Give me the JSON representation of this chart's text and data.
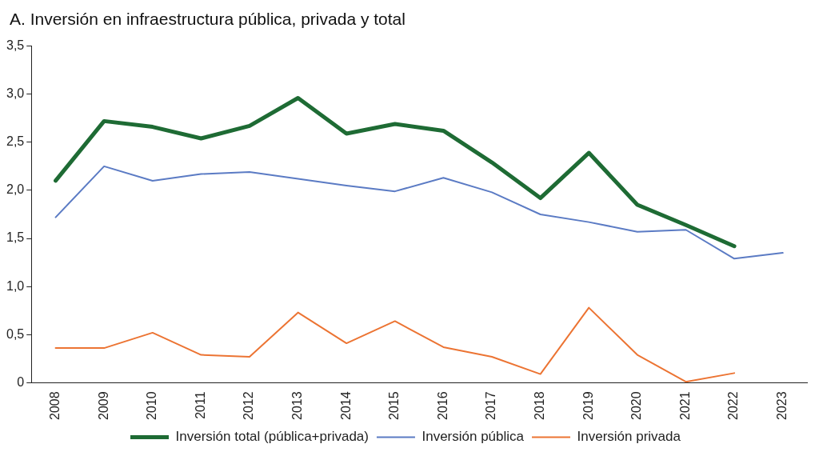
{
  "chart_data": {
    "type": "line",
    "title": "A. Inversión en infraestructura pública, privada y total",
    "categories": [
      "2008",
      "2009",
      "2010",
      "2011",
      "2012",
      "2013",
      "2014",
      "2015",
      "2016",
      "2017",
      "2018",
      "2019",
      "2020",
      "2021",
      "2022",
      "2023"
    ],
    "series": [
      {
        "name": "Inversión total (pública+privada)",
        "color": "#1e6b34",
        "values": [
          2.1,
          2.72,
          2.66,
          2.54,
          2.67,
          2.96,
          2.59,
          2.69,
          2.62,
          2.29,
          1.92,
          2.39,
          1.85,
          1.64,
          1.42,
          null
        ]
      },
      {
        "name": "Inversión pública",
        "color": "#5b7bc4",
        "values": [
          1.72,
          2.25,
          2.1,
          2.17,
          2.19,
          2.12,
          2.05,
          1.99,
          2.13,
          1.98,
          1.75,
          1.67,
          1.57,
          1.59,
          1.29,
          1.35
        ]
      },
      {
        "name": "Inversión privada",
        "color": "#ec7433",
        "values": [
          0.36,
          0.36,
          0.52,
          0.29,
          0.27,
          0.73,
          0.41,
          0.64,
          0.37,
          0.27,
          0.09,
          0.78,
          0.29,
          0.01,
          0.1,
          null
        ]
      }
    ],
    "ylim": [
      0,
      3.5
    ],
    "yticks": [
      {
        "value": 0,
        "label": "0"
      },
      {
        "value": 0.5,
        "label": "0,5"
      },
      {
        "value": 1,
        "label": "1,0"
      },
      {
        "value": 1.5,
        "label": "1,5"
      },
      {
        "value": 2,
        "label": "2,0"
      },
      {
        "value": 2.5,
        "label": "2,5"
      },
      {
        "value": 3,
        "label": "3,0"
      },
      {
        "value": 3.5,
        "label": "3,5"
      }
    ],
    "grid": false,
    "legend": "bottom",
    "marker": "none",
    "line_style": "solid"
  }
}
